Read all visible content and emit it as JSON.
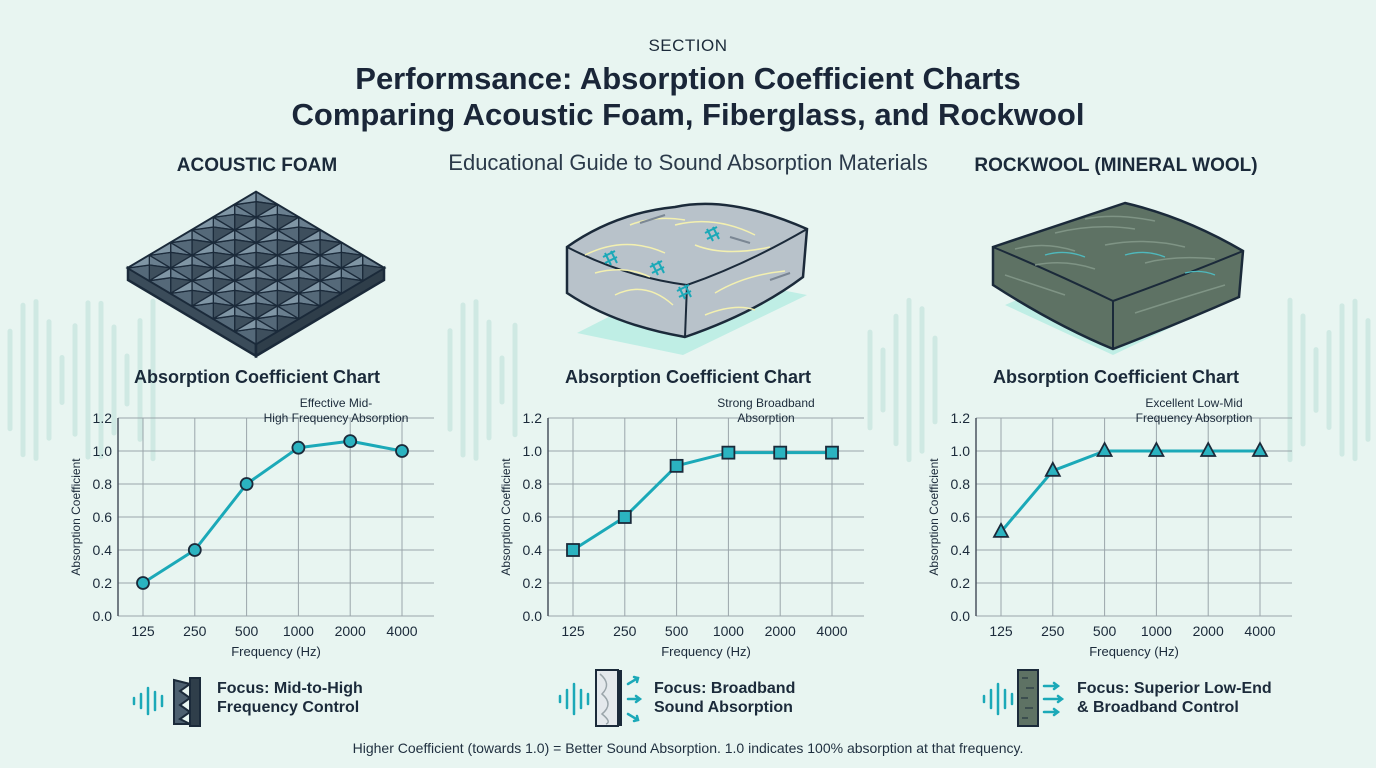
{
  "header": {
    "section": "SECTION",
    "title_line1": "Performsance: Absorption Coefficient Charts",
    "title_line2": "Comparing Acoustic Foam, Fiberglass, and Rockwool",
    "subtitle": "Educational Guide to Sound Absorption Materials"
  },
  "panels": [
    {
      "heading": "ACOUSTIC FOAM",
      "focus_line1": "Focus: Mid-to-High",
      "focus_line2": "Frequency Control"
    },
    {
      "heading": "",
      "focus_line1": "Focus: Broadband",
      "focus_line2": "Sound Absorption"
    },
    {
      "heading": "ROCKWOOL (MINERAL WOOL)",
      "focus_line1": "Focus: Superior Low-End",
      "focus_line2": "& Broadband Control"
    }
  ],
  "footer": "Higher Coefficient (towards 1.0) = Better Sound Absorption. 1.0 indicates 100% absorption at that frequency.",
  "colors": {
    "line": "#1ba9b8",
    "marker": "#2bb3c0",
    "grid": "#9aa5aa",
    "text": "#1b2a3a"
  },
  "chart_data": [
    {
      "type": "line",
      "title": "Absorption Coefficient Chart",
      "xlabel": "Frequency (Hz)",
      "ylabel": "Absorption Coefficient",
      "categories": [
        "125",
        "250",
        "500",
        "1000",
        "2000",
        "4000"
      ],
      "values": [
        0.2,
        0.4,
        0.8,
        1.02,
        1.06,
        1.0
      ],
      "ylim": [
        0,
        1.2
      ],
      "yticks": [
        "0.0",
        "0.2",
        "0.4",
        "0.6",
        "0.8",
        "1.0",
        "1.2"
      ],
      "marker": "circle",
      "grid": true,
      "annotation": "Effective Mid-High Frequency Absorption",
      "annotation_lines": [
        "Effective Mid-",
        "High Frequency Absorption"
      ]
    },
    {
      "type": "line",
      "title": "Absorption Coefficient Chart",
      "xlabel": "Frequency (Hz)",
      "ylabel": "Absorption Coefficient",
      "categories": [
        "125",
        "250",
        "500",
        "1000",
        "2000",
        "4000"
      ],
      "values": [
        0.4,
        0.6,
        0.91,
        0.99,
        0.99,
        0.99
      ],
      "ylim": [
        0,
        1.2
      ],
      "yticks": [
        "0.0",
        "0.2",
        "0.4",
        "0.6",
        "0.8",
        "1.0",
        "1.2"
      ],
      "marker": "square",
      "grid": true,
      "annotation": "Strong Broadband Absorption",
      "annotation_lines": [
        "Strong Broadband",
        "Absorption"
      ]
    },
    {
      "type": "line",
      "title": "Absorption Coefficient Chart",
      "xlabel": "Frequency (Hz)",
      "ylabel": "Absorption Coefficient",
      "categories": [
        "125",
        "250",
        "500",
        "1000",
        "2000",
        "4000"
      ],
      "values": [
        0.51,
        0.88,
        1.0,
        1.0,
        1.0,
        1.0
      ],
      "ylim": [
        0,
        1.2
      ],
      "yticks": [
        "0.0",
        "0.2",
        "0.4",
        "0.6",
        "0.8",
        "1.0",
        "1.2"
      ],
      "marker": "triangle",
      "grid": true,
      "annotation": "Excellent Low-Mid Frequency Absorption",
      "annotation_lines": [
        "Excellent Low-Mid",
        "Frequency Absorption"
      ]
    }
  ]
}
